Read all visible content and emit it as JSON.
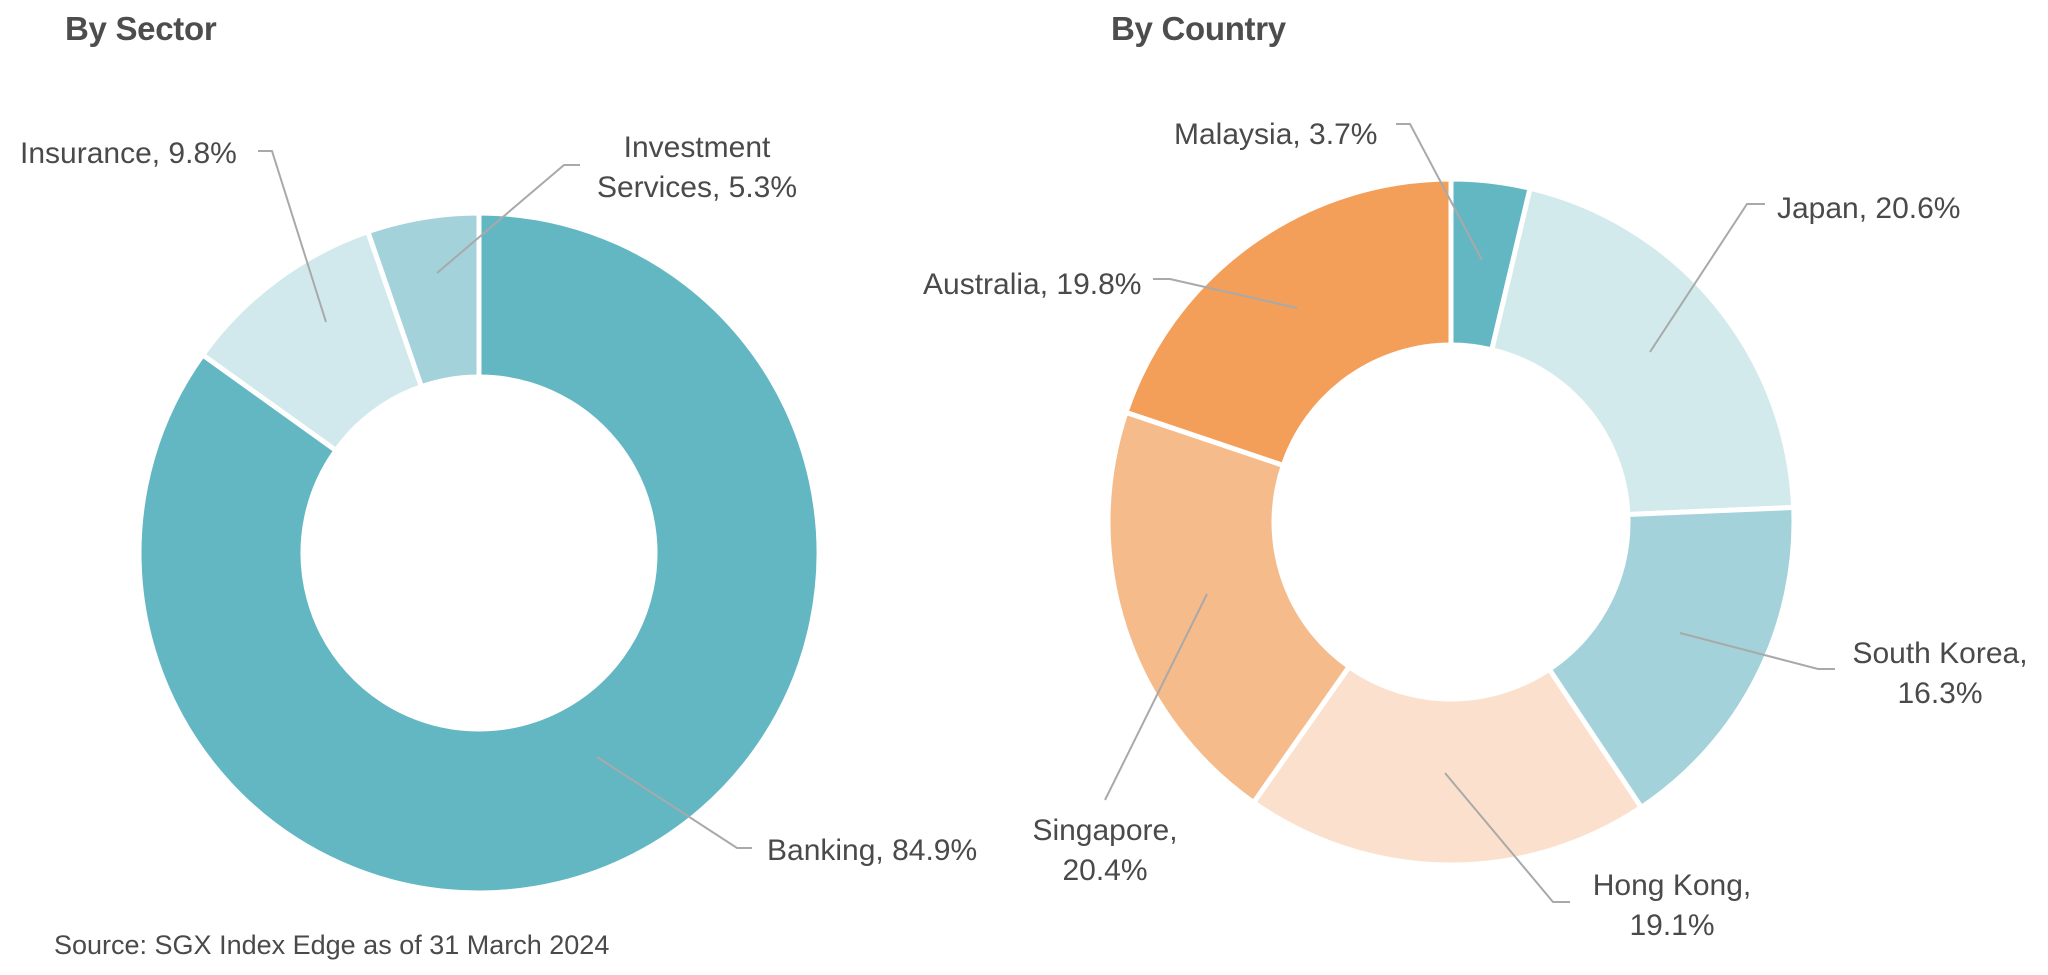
{
  "titles": {
    "sector": "By Sector",
    "country": "By Country"
  },
  "source": "Source: SGX Index Edge as of 31 March 2024",
  "chart_data": [
    {
      "type": "pie",
      "variant": "donut",
      "title": "By Sector",
      "categories": [
        "Banking",
        "Insurance",
        "Investment Services"
      ],
      "values": [
        84.9,
        9.8,
        5.3
      ],
      "unit": "%",
      "colors": [
        "#62b7c2",
        "#d1e9ec",
        "#a3d2db"
      ],
      "labels": [
        "Banking, 84.9%",
        "Insurance, 9.8%",
        "Investment Services, 5.3%"
      ],
      "start_angle": "12 o'clock, clockwise",
      "legend": "none (leader-line labels)"
    },
    {
      "type": "pie",
      "variant": "donut",
      "title": "By Country",
      "categories": [
        "Malaysia",
        "Japan",
        "South Korea",
        "Hong Kong",
        "Singapore",
        "Australia"
      ],
      "values": [
        3.7,
        20.6,
        16.3,
        19.1,
        20.4,
        19.8
      ],
      "unit": "%",
      "colors": [
        "#62b7c2",
        "#d3eaed",
        "#a3d2db",
        "#fbe1cd",
        "#f5bb8a",
        "#f39f5a"
      ],
      "labels": [
        "Malaysia, 3.7%",
        "Japan, 20.6%",
        "South Korea, 16.3%",
        "Hong Kong, 19.1%",
        "Singapore, 20.4%",
        "Australia, 19.8%"
      ],
      "start_angle": "12 o'clock, clockwise",
      "legend": "none (leader-line labels)"
    }
  ],
  "labels": {
    "sector": {
      "banking": "Banking, 84.9%",
      "insurance": "Insurance, 9.8%",
      "investment_line1": "Investment",
      "investment_line2": "Services, 5.3%"
    },
    "country": {
      "malaysia": "Malaysia, 3.7%",
      "japan": "Japan, 20.6%",
      "south_korea_line1": "South Korea,",
      "south_korea_line2": "16.3%",
      "hong_kong_line1": "Hong Kong,",
      "hong_kong_line2": "19.1%",
      "singapore_line1": "Singapore,",
      "singapore_line2": "20.4%",
      "australia": "Australia, 19.8%"
    }
  }
}
